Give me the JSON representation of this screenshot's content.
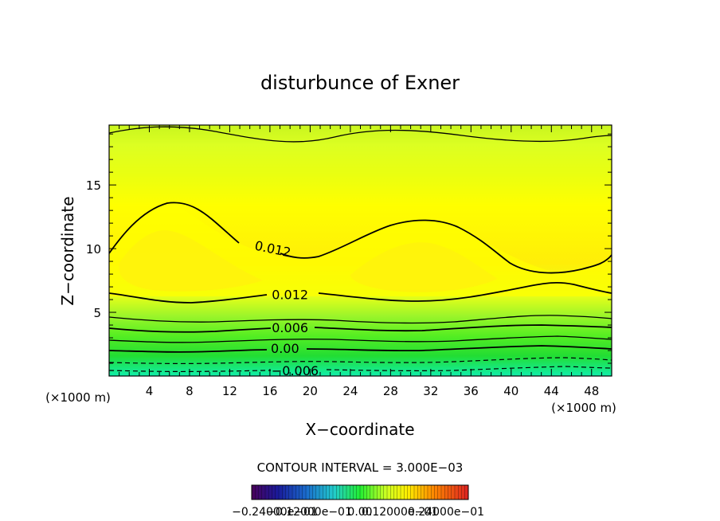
{
  "chart_data": {
    "type": "heatmap",
    "title": "disturbunce of Exner",
    "xlabel": "X−coordinate",
    "ylabel": "Z−coordinate",
    "x_unit": "(×1000 m)",
    "y_unit": "(×1000 m)",
    "xlim": [
      0,
      50
    ],
    "ylim": [
      0,
      19.7
    ],
    "x_ticks": [
      4,
      8,
      12,
      16,
      20,
      24,
      28,
      32,
      36,
      40,
      44,
      48
    ],
    "y_ticks": [
      5,
      10,
      15
    ],
    "contour_interval_label": "CONTOUR INTERVAL = 3.000E−03",
    "contour_interval": 0.003,
    "contour_labels": [
      {
        "text": "0.012",
        "x": 16.3,
        "z": 10.0,
        "angle": 12
      },
      {
        "text": "0.012",
        "x": 18.0,
        "z": 6.4,
        "angle": 0
      },
      {
        "text": "0.006",
        "x": 18.0,
        "z": 3.8,
        "angle": 0
      },
      {
        "text": "0.00",
        "x": 17.5,
        "z": 2.2,
        "angle": 0
      },
      {
        "text": "−0.006",
        "x": 18.5,
        "z": 0.45,
        "angle": 0
      }
    ],
    "field_description": "warm maxima near x=6 and x=32 at z~8; values decrease toward the surface (negative below z~1.5) and toward the top",
    "colorbar": {
      "min": -0.024,
      "max": 0.024,
      "labels_text": "−0.24000e−01",
      "labels_text2": "0.12000e−01",
      "labels_text3": "0.24000e−01",
      "labels_text4": "−0.12000e−01",
      "labels_text5": "0.00"
    },
    "colors": {
      "top_field": "#ddff22",
      "mid_field": "#ffff00",
      "max_field": "#ffd21a",
      "low_field": "#22ee33",
      "surface_field": "#11eeaa"
    }
  }
}
